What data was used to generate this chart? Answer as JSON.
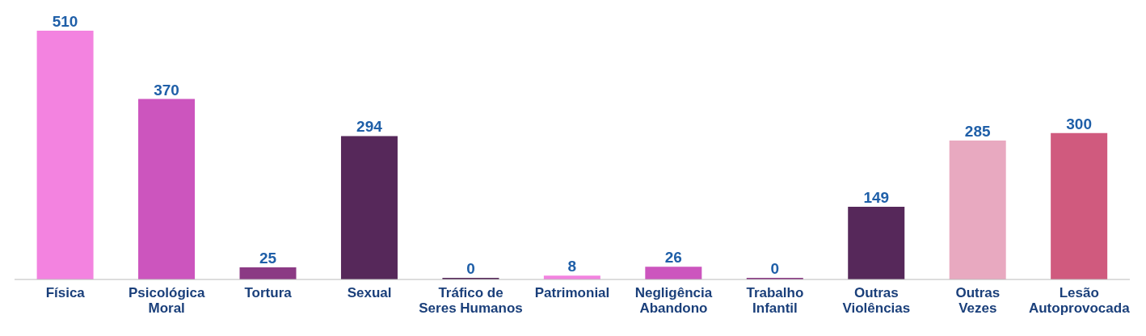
{
  "chart_data": {
    "type": "bar",
    "categories": [
      "Física",
      "Psicológica\nMoral",
      "Tortura",
      "Sexual",
      "Tráfico de\nSeres Humanos",
      "Patrimonial",
      "Negligência\nAbandono",
      "Trabalho\nInfantil",
      "Outras\nViolências",
      "Outras\nVezes",
      "Lesão\nAutoprovocada"
    ],
    "values": [
      510,
      370,
      25,
      294,
      0,
      8,
      26,
      0,
      149,
      285,
      300
    ],
    "colors": [
      "#f383e0",
      "#cc55be",
      "#8b3a84",
      "#56285a",
      "#56285a",
      "#f383e0",
      "#cc55be",
      "#8b3a84",
      "#56285a",
      "#e8a9c0",
      "#d05a7e"
    ],
    "data_labels": true
  }
}
